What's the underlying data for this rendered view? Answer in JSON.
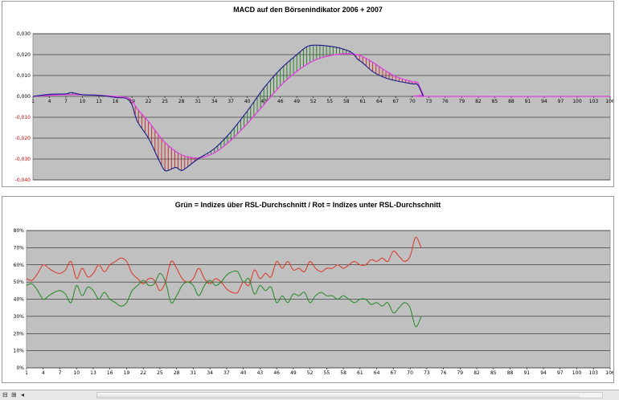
{
  "chart_data": [
    {
      "type": "line",
      "title": "MACD auf den Börsenindikator 2006 + 2007",
      "xlabel": "",
      "ylabel": "",
      "ylim": [
        -0.04,
        0.03
      ],
      "y_ticks": [
        "0,030",
        "0,020",
        "0,010",
        "0,000",
        "-0,010",
        "-0,020",
        "-0,030",
        "-0,040"
      ],
      "x_ticks": [
        "1",
        "4",
        "7",
        "10",
        "13",
        "16",
        "19",
        "22",
        "25",
        "28",
        "31",
        "34",
        "37",
        "40",
        "43",
        "46",
        "49",
        "52",
        "55",
        "58",
        "61",
        "64",
        "67",
        "70",
        "73",
        "76",
        "79",
        "82",
        "85",
        "88",
        "91",
        "94",
        "97",
        "100",
        "103",
        "106"
      ],
      "x_max": 106,
      "grid": true,
      "colors": {
        "positive": "#1e7a1e",
        "negative": "#cc2222",
        "signal": "#e040e0",
        "macd": "#1a1a8a",
        "plot_bg": "#c0c0c0",
        "neg_tick": "#cc0000"
      },
      "series": [
        {
          "points": [
            [
              1,
              0
            ],
            [
              4,
              0.001
            ],
            [
              7,
              0.0012
            ],
            [
              8,
              0.0018
            ],
            [
              10,
              0.0008
            ],
            [
              13,
              0.0005
            ],
            [
              16,
              -0.0005
            ],
            [
              18,
              -0.001
            ],
            [
              19,
              -0.004
            ],
            [
              20,
              -0.012
            ],
            [
              22,
              -0.02
            ],
            [
              24,
              -0.031
            ],
            [
              25,
              -0.0355
            ],
            [
              26,
              -0.035
            ],
            [
              27,
              -0.034
            ],
            [
              28,
              -0.0355
            ],
            [
              29,
              -0.034
            ],
            [
              31,
              -0.03
            ],
            [
              34,
              -0.025
            ],
            [
              37,
              -0.017
            ],
            [
              40,
              -0.007
            ],
            [
              43,
              0.004
            ],
            [
              46,
              0.013
            ],
            [
              49,
              0.02
            ],
            [
              51,
              0.024
            ],
            [
              53,
              0.0245
            ],
            [
              55,
              0.024
            ],
            [
              57,
              0.023
            ],
            [
              59,
              0.021
            ],
            [
              60,
              0.018
            ],
            [
              61,
              0.016
            ],
            [
              63,
              0.0115
            ],
            [
              65,
              0.009
            ],
            [
              67,
              0.0075
            ],
            [
              70,
              0.006
            ],
            [
              71,
              0.0055
            ],
            [
              72,
              0
            ]
          ]
        },
        {
          "points": [
            [
              1,
              0
            ],
            [
              4,
              0.0005
            ],
            [
              7,
              0.0008
            ],
            [
              10,
              0.0008
            ],
            [
              13,
              0.0005
            ],
            [
              16,
              0
            ],
            [
              18,
              -0.0005
            ],
            [
              19,
              -0.002
            ],
            [
              20,
              -0.006
            ],
            [
              22,
              -0.012
            ],
            [
              25,
              -0.022
            ],
            [
              28,
              -0.028
            ],
            [
              31,
              -0.0295
            ],
            [
              34,
              -0.027
            ],
            [
              37,
              -0.021
            ],
            [
              40,
              -0.013
            ],
            [
              43,
              -0.004
            ],
            [
              46,
              0.005
            ],
            [
              49,
              0.012
            ],
            [
              52,
              0.017
            ],
            [
              55,
              0.0195
            ],
            [
              58,
              0.0205
            ],
            [
              60,
              0.02
            ],
            [
              61,
              0.019
            ],
            [
              63,
              0.016
            ],
            [
              65,
              0.0125
            ],
            [
              67,
              0.0095
            ],
            [
              70,
              0.007
            ],
            [
              71,
              0.0065
            ],
            [
              72,
              0.001
            ],
            [
              73,
              0
            ],
            [
              106,
              0
            ]
          ]
        }
      ]
    },
    {
      "type": "line",
      "title": "Grün = Indizes über RSL-Durchschnitt / Rot = Indizes unter RSL-Durchschnitt",
      "xlabel": "",
      "ylabel": "",
      "ylim": [
        0,
        0.8
      ],
      "y_ticks": [
        "80%",
        "70%",
        "60%",
        "50%",
        "40%",
        "30%",
        "20%",
        "10%",
        "0%"
      ],
      "x_ticks": [
        "1",
        "4",
        "7",
        "10",
        "13",
        "16",
        "19",
        "22",
        "25",
        "28",
        "31",
        "34",
        "37",
        "40",
        "43",
        "46",
        "49",
        "52",
        "55",
        "58",
        "61",
        "64",
        "67",
        "70",
        "73",
        "76",
        "79",
        "82",
        "85",
        "88",
        "91",
        "94",
        "97",
        "100",
        "103",
        "106"
      ],
      "x_max": 106,
      "grid": true,
      "colors": {
        "red": "#dd3322",
        "green": "#228822",
        "plot_bg": "#c0c0c0"
      },
      "series": [
        {
          "color": "red",
          "points": [
            [
              1,
              0.52
            ],
            [
              2,
              0.51
            ],
            [
              3,
              0.55
            ],
            [
              4,
              0.6
            ],
            [
              5,
              0.58
            ],
            [
              6,
              0.56
            ],
            [
              7,
              0.55
            ],
            [
              8,
              0.57
            ],
            [
              9,
              0.62
            ],
            [
              10,
              0.52
            ],
            [
              11,
              0.58
            ],
            [
              12,
              0.53
            ],
            [
              13,
              0.55
            ],
            [
              14,
              0.6
            ],
            [
              15,
              0.56
            ],
            [
              16,
              0.6
            ],
            [
              17,
              0.62
            ],
            [
              18,
              0.64
            ],
            [
              19,
              0.62
            ],
            [
              20,
              0.55
            ],
            [
              21,
              0.52
            ],
            [
              22,
              0.49
            ],
            [
              23,
              0.52
            ],
            [
              24,
              0.51
            ],
            [
              25,
              0.45
            ],
            [
              26,
              0.5
            ],
            [
              27,
              0.62
            ],
            [
              28,
              0.58
            ],
            [
              29,
              0.52
            ],
            [
              30,
              0.5
            ],
            [
              31,
              0.52
            ],
            [
              32,
              0.58
            ],
            [
              33,
              0.52
            ],
            [
              34,
              0.49
            ],
            [
              35,
              0.52
            ],
            [
              36,
              0.5
            ],
            [
              37,
              0.46
            ],
            [
              38,
              0.44
            ],
            [
              39,
              0.44
            ],
            [
              40,
              0.5
            ],
            [
              41,
              0.48
            ],
            [
              42,
              0.57
            ],
            [
              43,
              0.52
            ],
            [
              44,
              0.55
            ],
            [
              45,
              0.53
            ],
            [
              46,
              0.62
            ],
            [
              47,
              0.58
            ],
            [
              48,
              0.62
            ],
            [
              49,
              0.57
            ],
            [
              50,
              0.58
            ],
            [
              51,
              0.56
            ],
            [
              52,
              0.62
            ],
            [
              53,
              0.58
            ],
            [
              54,
              0.56
            ],
            [
              55,
              0.58
            ],
            [
              56,
              0.58
            ],
            [
              57,
              0.6
            ],
            [
              58,
              0.58
            ],
            [
              59,
              0.6
            ],
            [
              60,
              0.62
            ],
            [
              61,
              0.6
            ],
            [
              62,
              0.6
            ],
            [
              63,
              0.63
            ],
            [
              64,
              0.62
            ],
            [
              65,
              0.64
            ],
            [
              66,
              0.62
            ],
            [
              67,
              0.68
            ],
            [
              68,
              0.65
            ],
            [
              69,
              0.62
            ],
            [
              70,
              0.65
            ],
            [
              71,
              0.76
            ],
            [
              72,
              0.7
            ]
          ]
        },
        {
          "color": "green",
          "points": [
            [
              1,
              0.48
            ],
            [
              2,
              0.49
            ],
            [
              3,
              0.45
            ],
            [
              4,
              0.4
            ],
            [
              5,
              0.42
            ],
            [
              6,
              0.44
            ],
            [
              7,
              0.45
            ],
            [
              8,
              0.43
            ],
            [
              9,
              0.38
            ],
            [
              10,
              0.48
            ],
            [
              11,
              0.42
            ],
            [
              12,
              0.47
            ],
            [
              13,
              0.45
            ],
            [
              14,
              0.4
            ],
            [
              15,
              0.44
            ],
            [
              16,
              0.4
            ],
            [
              17,
              0.38
            ],
            [
              18,
              0.36
            ],
            [
              19,
              0.38
            ],
            [
              20,
              0.45
            ],
            [
              21,
              0.48
            ],
            [
              22,
              0.51
            ],
            [
              23,
              0.48
            ],
            [
              24,
              0.49
            ],
            [
              25,
              0.55
            ],
            [
              26,
              0.5
            ],
            [
              27,
              0.38
            ],
            [
              28,
              0.42
            ],
            [
              29,
              0.48
            ],
            [
              30,
              0.5
            ],
            [
              31,
              0.48
            ],
            [
              32,
              0.42
            ],
            [
              33,
              0.48
            ],
            [
              34,
              0.51
            ],
            [
              35,
              0.48
            ],
            [
              36,
              0.5
            ],
            [
              37,
              0.54
            ],
            [
              38,
              0.56
            ],
            [
              39,
              0.56
            ],
            [
              40,
              0.5
            ],
            [
              41,
              0.52
            ],
            [
              42,
              0.43
            ],
            [
              43,
              0.48
            ],
            [
              44,
              0.45
            ],
            [
              45,
              0.47
            ],
            [
              46,
              0.38
            ],
            [
              47,
              0.42
            ],
            [
              48,
              0.38
            ],
            [
              49,
              0.43
            ],
            [
              50,
              0.42
            ],
            [
              51,
              0.44
            ],
            [
              52,
              0.38
            ],
            [
              53,
              0.42
            ],
            [
              54,
              0.44
            ],
            [
              55,
              0.42
            ],
            [
              56,
              0.42
            ],
            [
              57,
              0.4
            ],
            [
              58,
              0.42
            ],
            [
              59,
              0.4
            ],
            [
              60,
              0.38
            ],
            [
              61,
              0.4
            ],
            [
              62,
              0.4
            ],
            [
              63,
              0.37
            ],
            [
              64,
              0.38
            ],
            [
              65,
              0.36
            ],
            [
              66,
              0.38
            ],
            [
              67,
              0.32
            ],
            [
              68,
              0.35
            ],
            [
              69,
              0.38
            ],
            [
              70,
              0.35
            ],
            [
              71,
              0.24
            ],
            [
              72,
              0.3
            ]
          ]
        }
      ]
    }
  ],
  "statusbar": {
    "left_icons": [
      "sheet-nav-icon",
      "scroll-left-icon"
    ],
    "glyphs": [
      "⊟",
      "⊞",
      "◂"
    ]
  }
}
